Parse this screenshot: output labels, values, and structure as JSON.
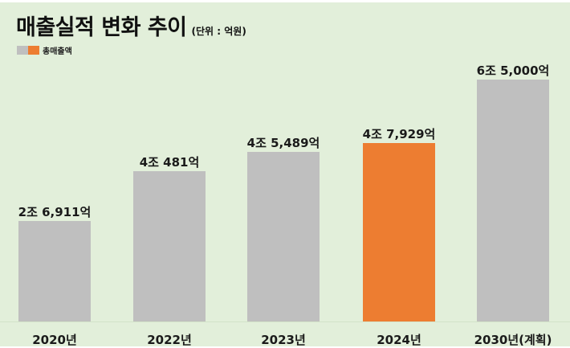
{
  "chart_data": {
    "type": "bar",
    "title": "매출실적 변화 추이",
    "subtitle": "(단위 : 억원)",
    "xlabel": "",
    "ylabel": "",
    "legend": [
      {
        "label": "총매출액",
        "colors": [
          "#bfbfbf",
          "#ed7d31"
        ]
      }
    ],
    "legend_position": "top-left",
    "grid": false,
    "categories": [
      "2020년",
      "2022년",
      "2023년",
      "2024년",
      "2030년(계획)"
    ],
    "series": [
      {
        "name": "총매출액",
        "values": [
          26911,
          40481,
          45489,
          47929,
          65000
        ]
      }
    ],
    "data_labels": [
      "2조 6,911억",
      "4조 481억",
      "4조 5,489억",
      "4조 7,929억",
      "6조 5,000억"
    ],
    "bar_colors": [
      "#bfbfbf",
      "#bfbfbf",
      "#bfbfbf",
      "#ed7d31",
      "#bfbfbf"
    ],
    "ylim": [
      0,
      65000
    ]
  },
  "colors": {
    "background": "#e2efda",
    "bar_default": "#bfbfbf",
    "bar_highlight": "#ed7d31",
    "text": "#1a1a1a"
  }
}
